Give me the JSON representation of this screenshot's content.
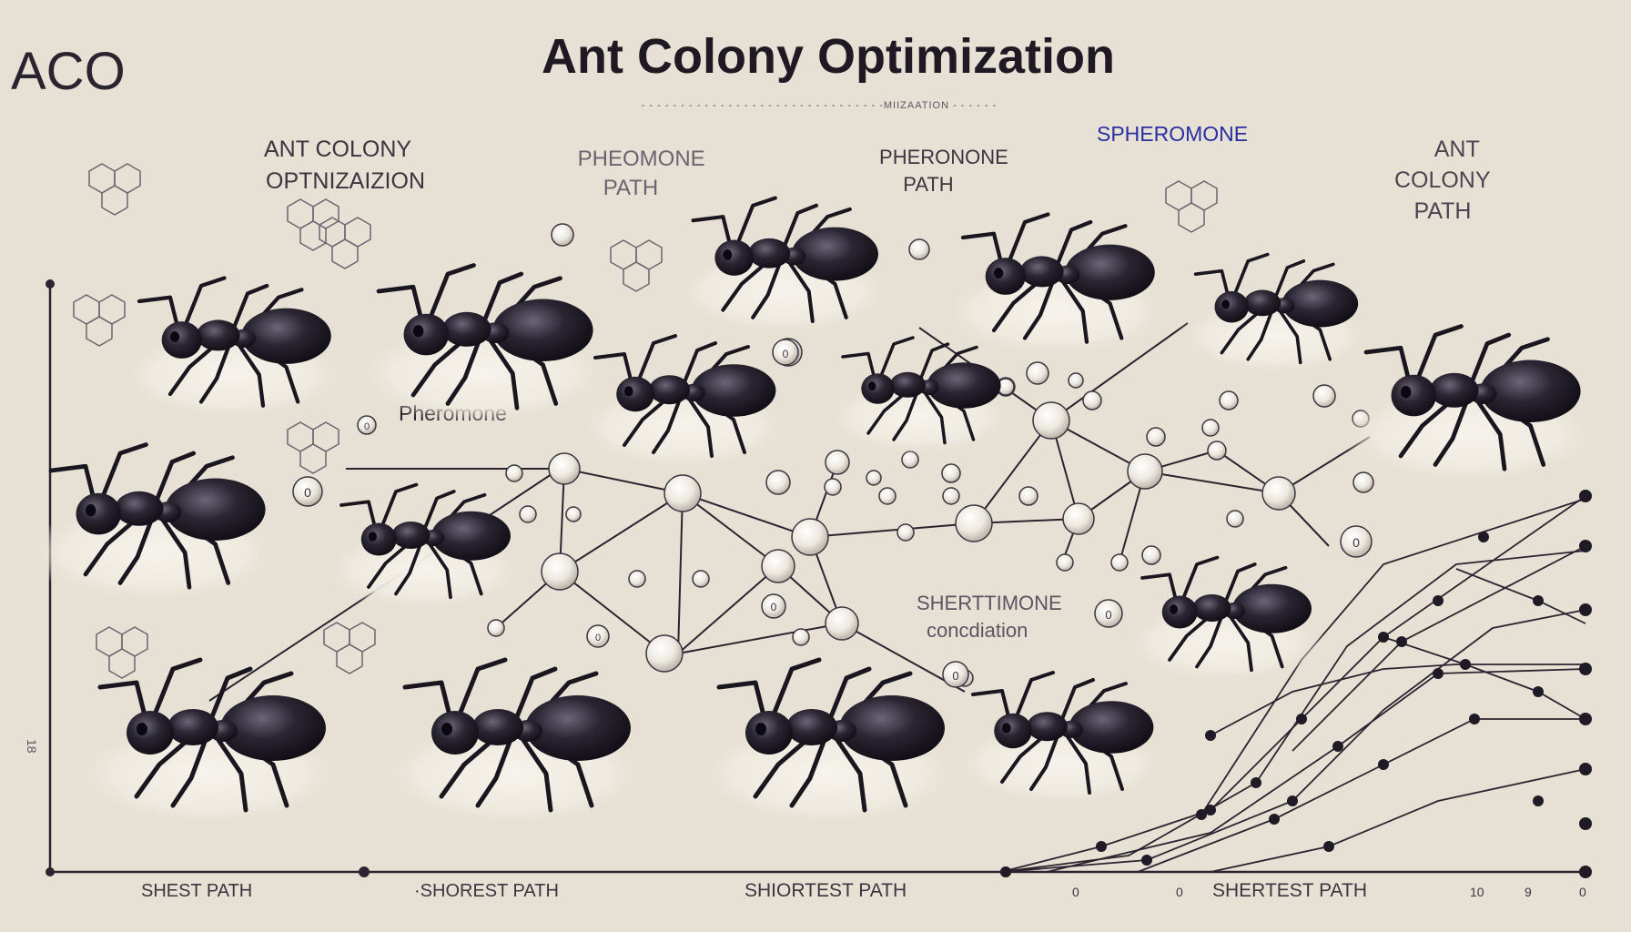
{
  "header": {
    "abbreviation": "ACO",
    "title": "Ant Colony Optimization",
    "subtitle_text": "- - - - - - - - - - - - - - - - - - - - - - - - - - - - - - -MIIZAATION - - - - - -"
  },
  "labels": {
    "top_left": [
      "ANT COLONY",
      "OPTNIZAIZION"
    ],
    "pheromone_path_1": [
      "PHEOMONE",
      "PATH"
    ],
    "pheromone_path_2": [
      "PHERONONE",
      "PATH"
    ],
    "spheromone": "SPHEROMONE",
    "ant_colony_path": [
      "ANT",
      "COLONY",
      "PATH"
    ],
    "pheromone": "Pheromone",
    "shertimone": [
      "SHERTTIMONE",
      "concdiation"
    ],
    "side_axis": "18"
  },
  "axis_labels": {
    "shest_path": "SHEST PATH",
    "shorest_path": "·SHOREST PATH",
    "shortest_path": "SHIORTEST PATH",
    "shrtest_path": "SHERTEST PATH",
    "tick_0a": "0",
    "tick_0b": "0",
    "tick_10": "10",
    "tick_9": "9",
    "tick_0c": "0"
  },
  "small_node_glyphs": [
    "0",
    "0",
    "0",
    "0",
    "0",
    "0",
    "0",
    "0"
  ],
  "colors": {
    "background": "#e6e1d4",
    "ink": "#2a2430",
    "ant_body": "#1f1b26",
    "node_fill": "#f4f1ea",
    "shadow": "#f2efe6"
  }
}
